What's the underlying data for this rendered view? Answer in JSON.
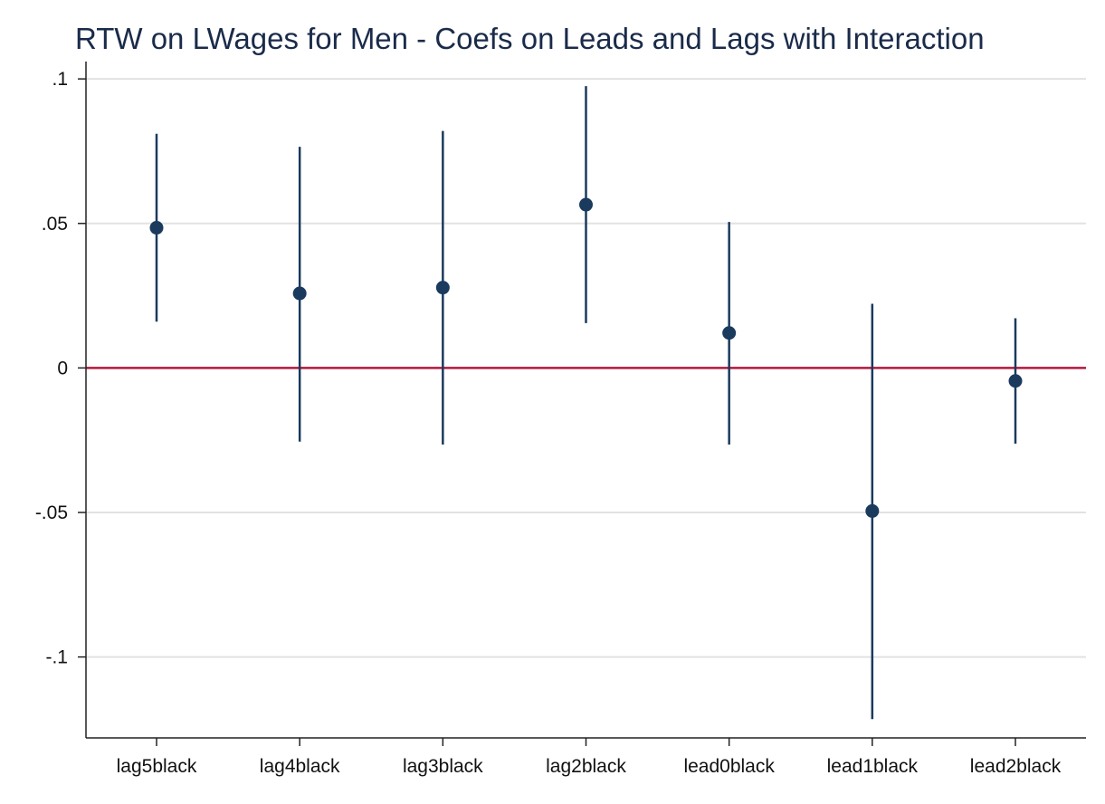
{
  "chart_data": {
    "type": "scatter",
    "title": "RTW on LWages for Men - Coefs on Leads and Lags with Interaction",
    "xlabel": "",
    "ylabel": "",
    "categories": [
      "lag5black",
      "lag4black",
      "lag3black",
      "lag2black",
      "lead0black",
      "lead1black",
      "lead2black"
    ],
    "values": [
      0.0485,
      0.0258,
      0.0278,
      0.0565,
      0.0121,
      -0.0495,
      -0.0045
    ],
    "ci_low": [
      0.016,
      -0.0255,
      -0.0265,
      0.0155,
      -0.0265,
      -0.1215,
      -0.0262
    ],
    "ci_high": [
      0.081,
      0.0765,
      0.082,
      0.0975,
      0.0505,
      0.0222,
      0.0172
    ],
    "ylim": [
      -0.128,
      0.106
    ],
    "yticks": [
      0.1,
      0.05,
      0,
      -0.05,
      -0.1
    ],
    "ytick_labels": [
      ".1",
      ".05",
      "0",
      "-.05",
      "-.1"
    ],
    "reference_line": 0,
    "grid": true,
    "colors": {
      "marker": "#1a3a5e",
      "ci": "#1a3a5e",
      "reference": "#b5173c",
      "grid": "#e2e2e2",
      "axis": "#222222"
    }
  }
}
